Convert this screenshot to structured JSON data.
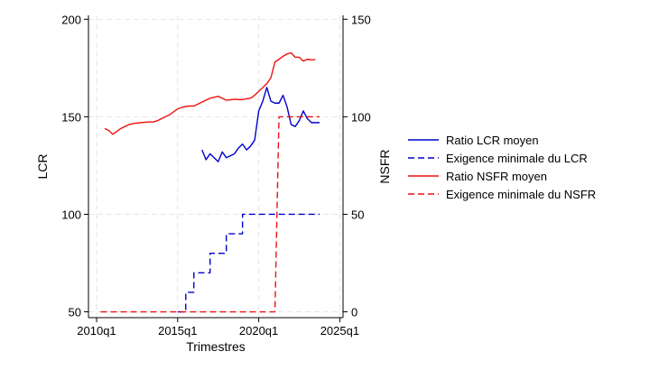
{
  "chart_data": {
    "type": "line",
    "title": "",
    "xlabel": "Trimestres",
    "ylabel_left": "LCR",
    "ylabel_right": "NSFR",
    "x_ticks": [
      "2010q1",
      "2015q1",
      "2020q1",
      "2025q1"
    ],
    "x_tick_values": [
      2010.0,
      2015.0,
      2020.0,
      2025.0
    ],
    "xlim": [
      2009.5,
      2025.2
    ],
    "ylim_left": [
      47,
      202
    ],
    "yticks_left": [
      "50",
      "100",
      "150",
      "200"
    ],
    "ylim_right": [
      -3,
      152
    ],
    "yticks_right": [
      "0",
      "50",
      "100",
      "150"
    ],
    "grid": true,
    "legend_position": "right",
    "series": [
      {
        "name": "Ratio LCR moyen",
        "axis": "left",
        "color": "#0000cc",
        "dash": "solid",
        "x": [
          2016.5,
          2016.75,
          2017.0,
          2017.25,
          2017.5,
          2017.75,
          2018.0,
          2018.25,
          2018.5,
          2018.75,
          2019.0,
          2019.25,
          2019.5,
          2019.75,
          2020.0,
          2020.25,
          2020.5,
          2020.75,
          2021.0,
          2021.25,
          2021.5,
          2021.75,
          2022.0,
          2022.25,
          2022.5,
          2022.75,
          2023.0,
          2023.25,
          2023.5,
          2023.75
        ],
        "values": [
          133,
          128,
          131,
          129,
          127,
          132,
          129,
          130,
          131,
          134,
          136,
          133,
          135,
          138,
          153,
          158,
          165,
          158,
          157,
          157,
          161,
          155,
          146,
          145,
          148,
          153,
          149,
          147,
          147,
          147
        ]
      },
      {
        "name": "Exigence minimale du LCR",
        "axis": "left",
        "color": "#0000cc",
        "dash": "dashed",
        "x": [
          2015.0,
          2015.5,
          2015.5,
          2016.0,
          2016.0,
          2017.0,
          2017.0,
          2018.0,
          2018.0,
          2019.0,
          2019.0,
          2023.75
        ],
        "values": [
          50,
          50,
          60,
          60,
          70,
          70,
          80,
          80,
          90,
          90,
          100,
          100
        ]
      },
      {
        "name": "Ratio NSFR moyen",
        "axis": "right",
        "color": "#ee1111",
        "dash": "solid",
        "x": [
          2010.5,
          2010.75,
          2011.0,
          2011.25,
          2011.5,
          2011.75,
          2012.0,
          2012.25,
          2012.5,
          2012.75,
          2013.0,
          2013.25,
          2013.5,
          2013.75,
          2014.0,
          2014.25,
          2014.5,
          2014.75,
          2015.0,
          2015.25,
          2015.5,
          2015.75,
          2016.0,
          2016.25,
          2016.5,
          2016.75,
          2017.0,
          2017.25,
          2017.5,
          2017.75,
          2018.0,
          2018.25,
          2018.5,
          2018.75,
          2019.0,
          2019.25,
          2019.5,
          2019.75,
          2020.0,
          2020.25,
          2020.5,
          2020.75,
          2021.0,
          2021.25,
          2021.5,
          2021.75,
          2022.0,
          2022.25,
          2022.5,
          2022.75,
          2023.0,
          2023.25,
          2023.5
        ],
        "values": [
          94,
          93,
          91,
          92.5,
          94,
          95,
          96,
          96.5,
          96.8,
          97,
          97.2,
          97.3,
          97.3,
          98,
          99,
          100,
          101,
          102.5,
          104,
          104.8,
          105.3,
          105.5,
          105.5,
          106.5,
          107.5,
          108.5,
          109.5,
          110,
          110.5,
          109.5,
          108.5,
          108.7,
          109,
          108.8,
          108.8,
          109.2,
          109.5,
          111,
          113,
          115,
          117,
          120,
          128,
          129.5,
          131,
          132.2,
          132.8,
          130.5,
          130.5,
          128.5,
          129.5,
          129.2,
          129.3
        ]
      },
      {
        "name": "Exigence minimale du NSFR",
        "axis": "right",
        "color": "#ee1111",
        "dash": "dashed",
        "x": [
          2010.25,
          2021.0,
          2021.25,
          2023.75
        ],
        "values": [
          0,
          0,
          100,
          100
        ]
      }
    ]
  }
}
